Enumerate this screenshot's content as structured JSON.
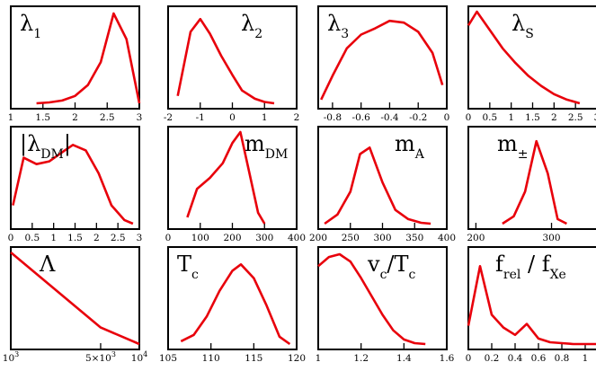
{
  "chart_data": [
    {
      "type": "line",
      "color": "#e8000b",
      "label": {
        "main": "λ",
        "sub": "1"
      },
      "xlim": [
        1,
        3
      ],
      "xticks": [
        {
          "v": 1,
          "t": "1"
        },
        {
          "v": 1.5,
          "t": "1.5"
        },
        {
          "v": 2,
          "t": "2"
        },
        {
          "v": 2.5,
          "t": "2.5"
        },
        {
          "v": 3,
          "t": "3"
        }
      ],
      "x": [
        1.4,
        1.6,
        1.8,
        2.0,
        2.2,
        2.4,
        2.6,
        2.8,
        3.0
      ],
      "y": [
        0.0,
        0.01,
        0.03,
        0.08,
        0.2,
        0.45,
        0.98,
        0.7,
        0.0
      ]
    },
    {
      "type": "line",
      "color": "#e8000b",
      "label": {
        "main": "λ",
        "sub": "2"
      },
      "xlim": [
        -2,
        2
      ],
      "xticks": [
        {
          "v": -2,
          "t": "-2"
        },
        {
          "v": -1,
          "t": "-1"
        },
        {
          "v": 0,
          "t": "0"
        },
        {
          "v": 1,
          "t": "1"
        },
        {
          "v": 2,
          "t": "2"
        }
      ],
      "x": [
        -1.7,
        -1.3,
        -1.0,
        -0.7,
        -0.35,
        0.0,
        0.3,
        0.7,
        1.0,
        1.3
      ],
      "y": [
        0.08,
        0.78,
        0.92,
        0.76,
        0.52,
        0.31,
        0.14,
        0.05,
        0.015,
        0.0
      ]
    },
    {
      "type": "line",
      "color": "#e8000b",
      "label": {
        "main": "λ",
        "sub": "3"
      },
      "xlim": [
        -0.9,
        0
      ],
      "xticks": [
        {
          "v": -0.8,
          "t": "-0.8"
        },
        {
          "v": -0.6,
          "t": "-0.6"
        },
        {
          "v": -0.4,
          "t": "-0.4"
        },
        {
          "v": -0.2,
          "t": "-0.2"
        },
        {
          "v": 0,
          "t": "0"
        }
      ],
      "x": [
        -0.88,
        -0.8,
        -0.7,
        -0.6,
        -0.5,
        -0.4,
        -0.3,
        -0.2,
        -0.1,
        -0.03
      ],
      "y": [
        0.04,
        0.3,
        0.6,
        0.75,
        0.82,
        0.9,
        0.88,
        0.78,
        0.55,
        0.2
      ]
    },
    {
      "type": "line",
      "color": "#e8000b",
      "label": {
        "main": "λ",
        "sub": "S"
      },
      "xlim": [
        0,
        3
      ],
      "xticks": [
        {
          "v": 0,
          "t": "0"
        },
        {
          "v": 0.5,
          "t": "0.5"
        },
        {
          "v": 1,
          "t": "1"
        },
        {
          "v": 1.5,
          "t": "1.5"
        },
        {
          "v": 2,
          "t": "2"
        },
        {
          "v": 2.5,
          "t": "2.5"
        },
        {
          "v": 3,
          "t": "3"
        }
      ],
      "x": [
        0.0,
        0.2,
        0.5,
        0.8,
        1.1,
        1.4,
        1.7,
        2.0,
        2.3,
        2.6
      ],
      "y": [
        0.85,
        1.0,
        0.8,
        0.6,
        0.44,
        0.3,
        0.19,
        0.1,
        0.04,
        0.0
      ]
    },
    {
      "type": "line",
      "color": "#e8000b",
      "label": {
        "main": "|λ",
        "sub": "DM",
        "post": "|"
      },
      "xlim": [
        0,
        3
      ],
      "xticks": [
        {
          "v": 0,
          "t": "0"
        },
        {
          "v": 0.5,
          "t": "0.5"
        },
        {
          "v": 1,
          "t": "1"
        },
        {
          "v": 1.5,
          "t": "1.5"
        },
        {
          "v": 2,
          "t": "2"
        },
        {
          "v": 2.5,
          "t": "2.5"
        },
        {
          "v": 3,
          "t": "3"
        }
      ],
      "x": [
        0.05,
        0.3,
        0.6,
        0.9,
        1.2,
        1.45,
        1.75,
        2.05,
        2.35,
        2.65,
        2.85
      ],
      "y": [
        0.2,
        0.72,
        0.65,
        0.68,
        0.78,
        0.86,
        0.8,
        0.55,
        0.2,
        0.04,
        0.0
      ]
    },
    {
      "type": "line",
      "color": "#e8000b",
      "label": {
        "main": "m",
        "sub": "DM"
      },
      "xlim": [
        0,
        400
      ],
      "xticks": [
        {
          "v": 0,
          "t": "0"
        },
        {
          "v": 100,
          "t": "100"
        },
        {
          "v": 200,
          "t": "200"
        },
        {
          "v": 300,
          "t": "300"
        },
        {
          "v": 400,
          "t": "400"
        }
      ],
      "x": [
        60,
        90,
        130,
        170,
        200,
        225,
        250,
        280,
        300
      ],
      "y": [
        0.07,
        0.38,
        0.5,
        0.66,
        0.88,
        1.0,
        0.6,
        0.12,
        0.0
      ]
    },
    {
      "type": "line",
      "color": "#e8000b",
      "label": {
        "main": "m",
        "sub": "A"
      },
      "xlim": [
        200,
        400
      ],
      "xticks": [
        {
          "v": 200,
          "t": "200"
        },
        {
          "v": 250,
          "t": "250"
        },
        {
          "v": 300,
          "t": "300"
        },
        {
          "v": 350,
          "t": "350"
        },
        {
          "v": 400,
          "t": "400"
        }
      ],
      "x": [
        210,
        230,
        250,
        265,
        280,
        300,
        320,
        340,
        360,
        375
      ],
      "y": [
        0.0,
        0.1,
        0.35,
        0.76,
        0.83,
        0.45,
        0.15,
        0.05,
        0.01,
        0.0
      ]
    },
    {
      "type": "line",
      "color": "#e8000b",
      "label": {
        "main": "m",
        "sub": "±"
      },
      "xlim": [
        190,
        360
      ],
      "xticks": [
        {
          "v": 200,
          "t": "200"
        },
        {
          "v": 300,
          "t": "300"
        }
      ],
      "x": [
        235,
        250,
        265,
        280,
        295,
        308,
        320
      ],
      "y": [
        0.0,
        0.08,
        0.35,
        0.9,
        0.55,
        0.05,
        0.0
      ]
    },
    {
      "type": "line",
      "color": "#e8000b",
      "label": {
        "main": "Λ",
        "sub": ""
      },
      "xlim": [
        1000,
        10000
      ],
      "xscale": "log",
      "xticks": [
        {
          "v": 1000,
          "t": "10",
          "exp": "3"
        },
        {
          "v": 5000,
          "t": "5×10",
          "exp": "3"
        },
        {
          "v": 10000,
          "t": "10",
          "exp": "4"
        }
      ],
      "x": [
        1000,
        5000,
        10000
      ],
      "y": [
        1.0,
        0.18,
        0.0
      ]
    },
    {
      "type": "line",
      "color": "#e8000b",
      "label": {
        "main": "T",
        "sub": "c"
      },
      "xlim": [
        105,
        120
      ],
      "xticks": [
        {
          "v": 105,
          "t": "105"
        },
        {
          "v": 110,
          "t": "110"
        },
        {
          "v": 115,
          "t": "115"
        },
        {
          "v": 120,
          "t": "120"
        }
      ],
      "x": [
        106.5,
        108,
        109.5,
        111,
        112.5,
        113.5,
        115,
        116.5,
        118,
        119.2
      ],
      "y": [
        0.03,
        0.1,
        0.3,
        0.58,
        0.8,
        0.87,
        0.72,
        0.42,
        0.08,
        0.0
      ]
    },
    {
      "type": "line",
      "color": "#e8000b",
      "label": {
        "main": "v",
        "sub": "c",
        "post": "/T",
        "sub2": "c"
      },
      "xlim": [
        1,
        1.6
      ],
      "xticks": [
        {
          "v": 1,
          "t": "1"
        },
        {
          "v": 1.2,
          "t": "1.2"
        },
        {
          "v": 1.4,
          "t": "1.4"
        },
        {
          "v": 1.6,
          "t": "1.6"
        }
      ],
      "x": [
        1.0,
        1.05,
        1.1,
        1.15,
        1.2,
        1.25,
        1.3,
        1.35,
        1.4,
        1.45,
        1.5
      ],
      "y": [
        0.85,
        0.95,
        0.98,
        0.9,
        0.72,
        0.52,
        0.32,
        0.15,
        0.05,
        0.01,
        0.0
      ]
    },
    {
      "type": "line",
      "color": "#e8000b",
      "label": {
        "main": "f",
        "sub": "rel",
        "post": " / f",
        "sub2": "Xe"
      },
      "xlim": [
        0,
        1.1
      ],
      "xticks": [
        {
          "v": 0,
          "t": "0"
        },
        {
          "v": 0.2,
          "t": "0.2"
        },
        {
          "v": 0.4,
          "t": "0.4"
        },
        {
          "v": 0.6,
          "t": "0.6"
        },
        {
          "v": 0.8,
          "t": "0.8"
        },
        {
          "v": 1,
          "t": "1"
        }
      ],
      "x": [
        0.0,
        0.1,
        0.2,
        0.3,
        0.4,
        0.5,
        0.6,
        0.7,
        0.8,
        0.9,
        1.0,
        1.1
      ],
      "y": [
        0.2,
        0.85,
        0.32,
        0.18,
        0.1,
        0.22,
        0.06,
        0.02,
        0.01,
        0.0,
        0.0,
        0.0
      ]
    }
  ]
}
